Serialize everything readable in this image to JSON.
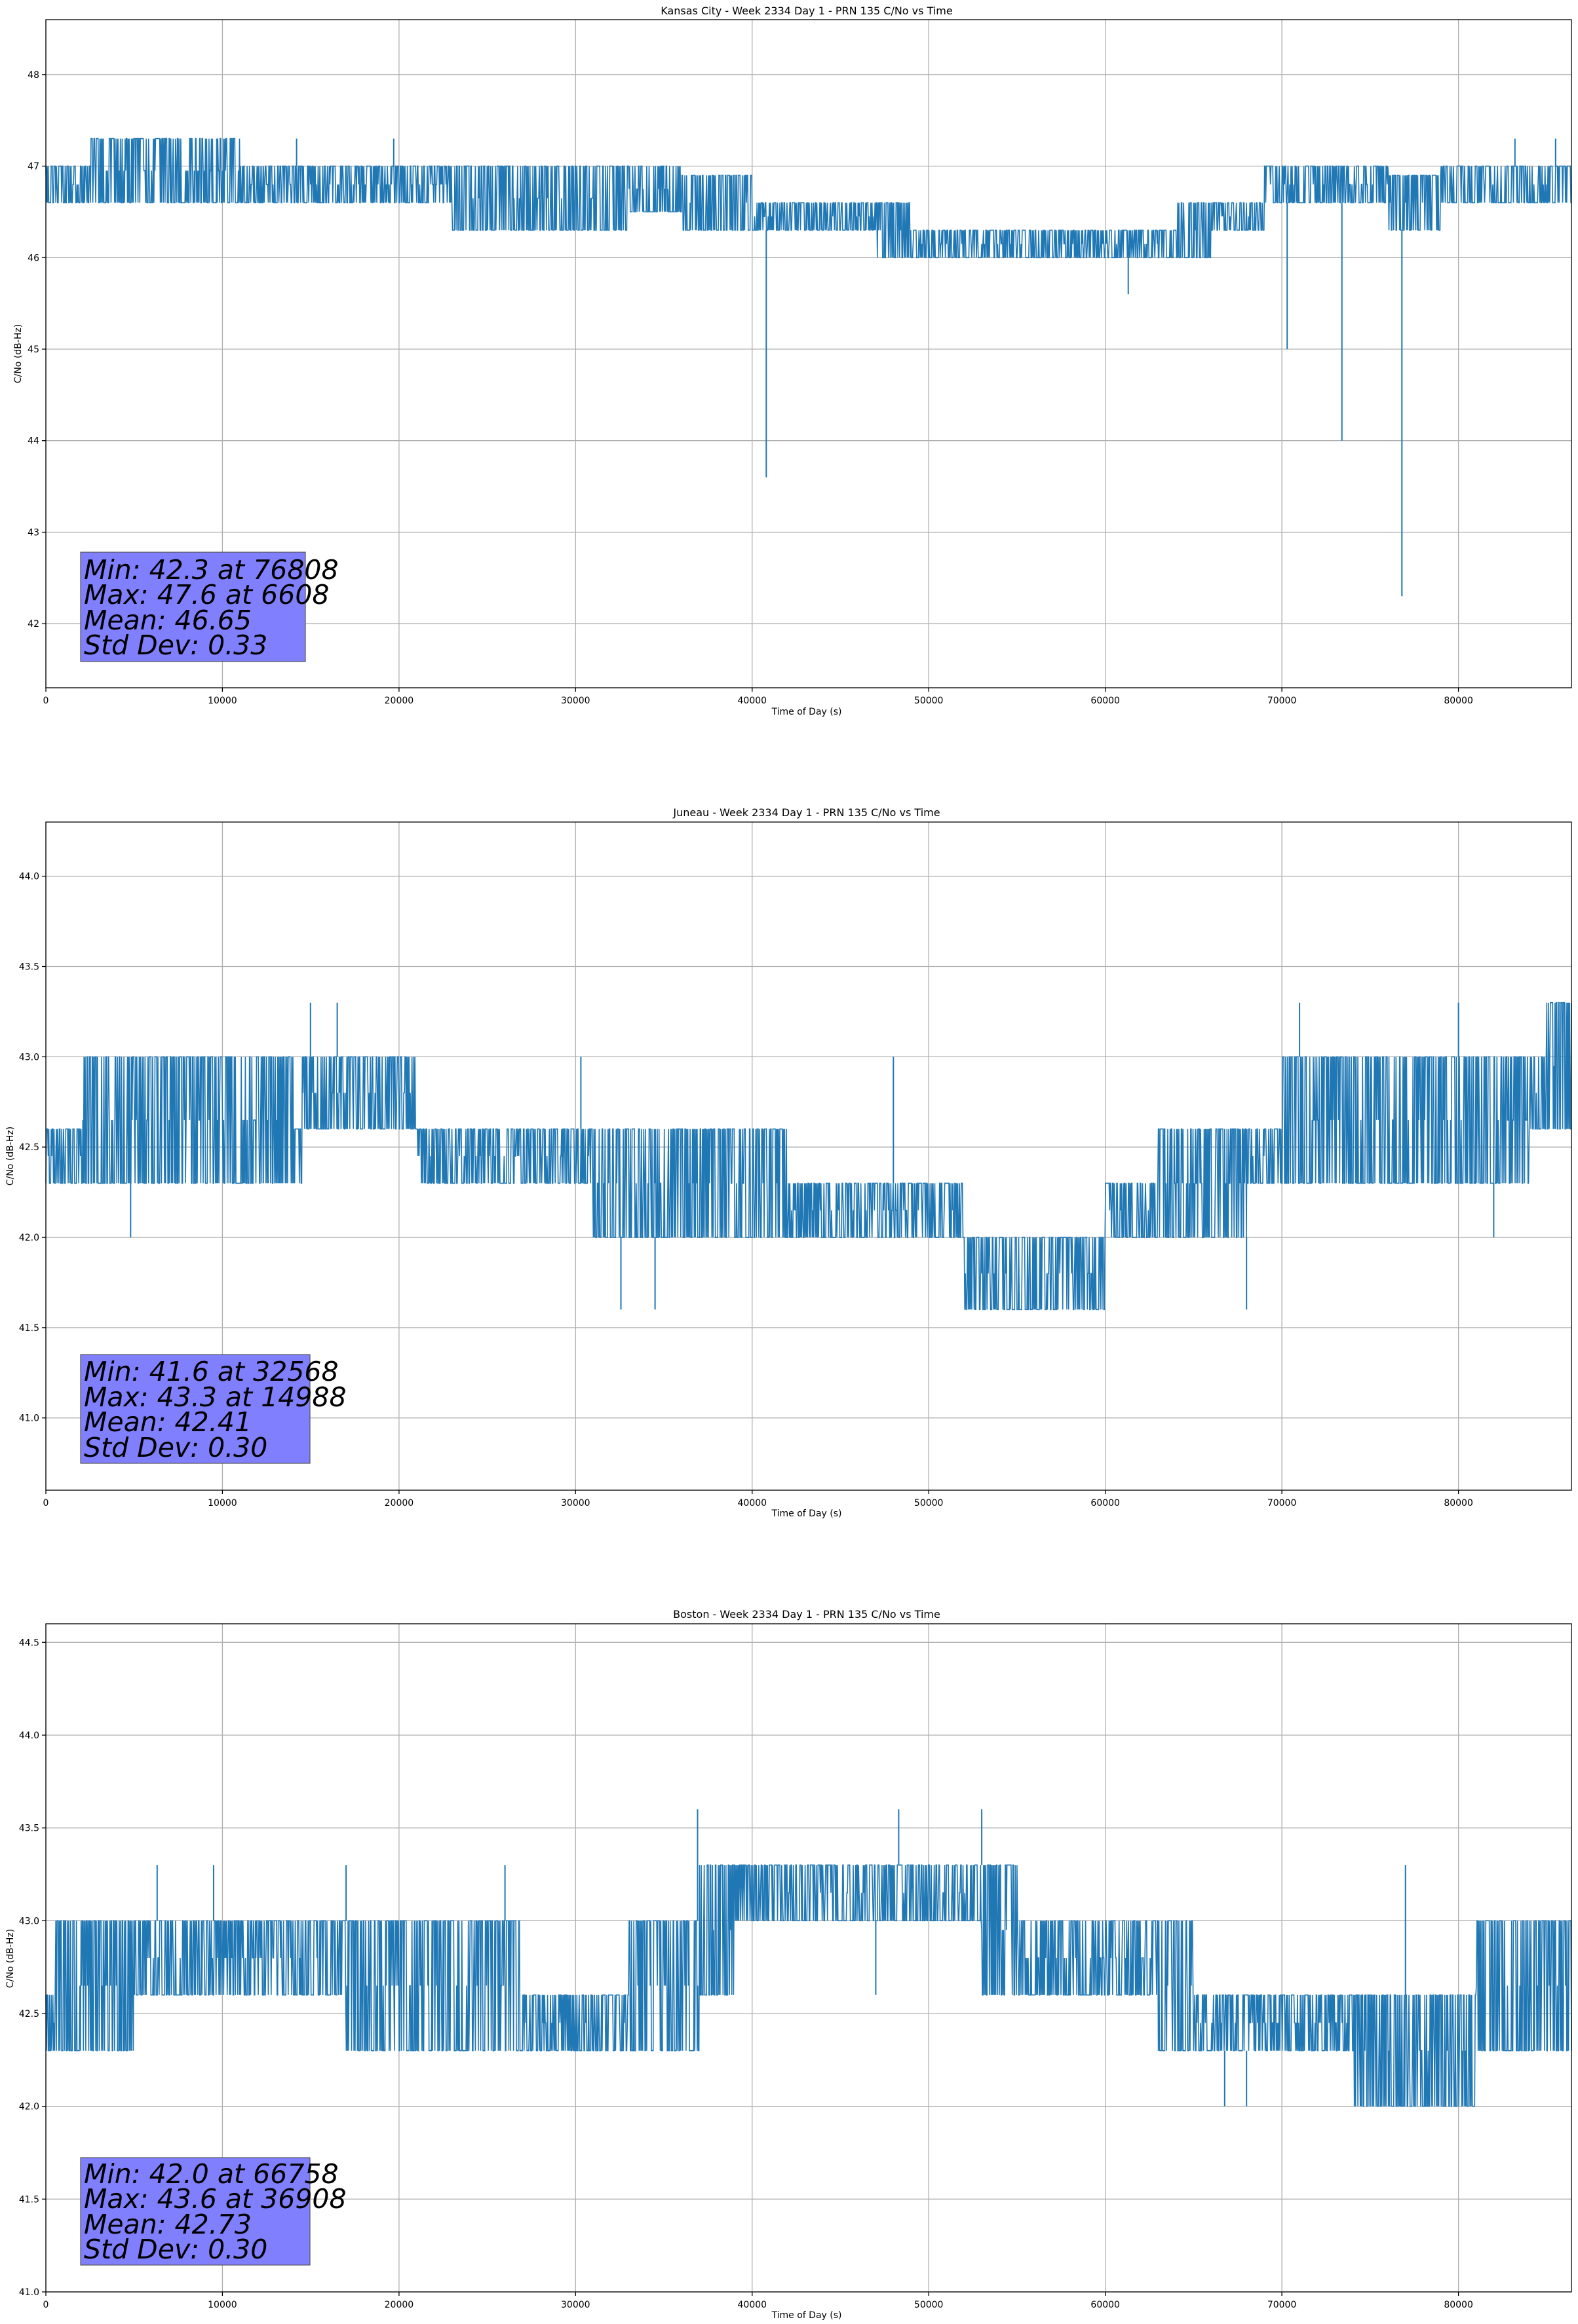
{
  "chart_data": [
    {
      "type": "line",
      "title": "Kansas City - Week 2334 Day 1 - PRN 135 C/No vs Time",
      "xlabel": "Time of Day (s)",
      "ylabel": "C/No (dB-Hz)",
      "xlim": [
        0,
        86400
      ],
      "ylim": [
        41.3,
        48.6
      ],
      "xticks": [
        0,
        10000,
        20000,
        30000,
        40000,
        50000,
        60000,
        70000,
        80000
      ],
      "yticks": [
        42,
        43,
        44,
        45,
        46,
        47,
        48
      ],
      "ytick_decimals": 0,
      "grid": true,
      "line_color": "#1f77b4",
      "stats": {
        "min": "Min: 42.3 at 76808",
        "max": "Max: 47.6 at 6608",
        "mean": "Mean: 46.65",
        "std": "Std Dev: 0.33"
      },
      "series": [
        {
          "x": [
            0,
            2500,
            5000,
            6608,
            9000,
            11000,
            11500,
            15000,
            20000,
            23000,
            26000,
            30000,
            33000,
            36000,
            39000,
            40800,
            41200,
            44000,
            47000,
            50000,
            53000,
            56000,
            58000,
            61300,
            62000,
            65000,
            66000,
            69000,
            70300,
            71000,
            73000,
            73400,
            74000,
            76800,
            77500,
            80000,
            83000,
            86400
          ],
          "y": [
            46.8,
            46.9,
            47.1,
            47.6,
            47.1,
            47.0,
            46.8,
            46.8,
            46.8,
            46.8,
            46.7,
            46.7,
            46.8,
            46.7,
            46.8,
            43.6,
            46.6,
            46.4,
            46.4,
            46.2,
            46.2,
            46.2,
            46.1,
            45.6,
            46.1,
            46.2,
            46.5,
            46.5,
            45.0,
            46.8,
            46.8,
            44.0,
            46.8,
            42.3,
            46.6,
            46.8,
            46.8,
            46.8
          ],
          "band": [
            [
              0,
              46.6,
              47.0
            ],
            [
              2500,
              46.6,
              47.3
            ],
            [
              11000,
              46.6,
              47.0
            ],
            [
              23000,
              46.3,
              47.0
            ],
            [
              33000,
              46.5,
              47.0
            ],
            [
              36000,
              46.3,
              46.9
            ],
            [
              39000,
              46.3,
              46.9
            ],
            [
              40000,
              46.3,
              46.6
            ],
            [
              47000,
              46.0,
              46.6
            ],
            [
              49000,
              46.0,
              46.3
            ],
            [
              56000,
              46.0,
              46.3
            ],
            [
              63000,
              46.0,
              46.3
            ],
            [
              64000,
              46.0,
              46.6
            ],
            [
              66000,
              46.3,
              46.6
            ],
            [
              69000,
              46.6,
              47.0
            ],
            [
              72000,
              46.6,
              47.0
            ],
            [
              76000,
              46.3,
              46.9
            ],
            [
              79000,
              46.6,
              47.0
            ],
            [
              86400,
              46.6,
              47.0
            ]
          ],
          "spikes": [
            [
              3500,
              47.3
            ],
            [
              9700,
              46.6
            ],
            [
              14200,
              47.3
            ],
            [
              19700,
              47.3
            ],
            [
              40800,
              43.6
            ],
            [
              46000,
              46.3
            ],
            [
              61300,
              45.6
            ],
            [
              70300,
              45.0
            ],
            [
              73400,
              44.0
            ],
            [
              76800,
              42.3
            ],
            [
              83200,
              47.3
            ],
            [
              85500,
              47.3
            ]
          ]
        }
      ]
    },
    {
      "type": "line",
      "title": "Juneau - Week 2334 Day 1 - PRN 135 C/No vs Time",
      "xlabel": "Time of Day (s)",
      "ylabel": "C/No (dB-Hz)",
      "xlim": [
        0,
        86400
      ],
      "ylim": [
        40.6,
        44.3
      ],
      "xticks": [
        0,
        10000,
        20000,
        30000,
        40000,
        50000,
        60000,
        70000,
        80000
      ],
      "yticks": [
        41.0,
        41.5,
        42.0,
        42.5,
        43.0,
        43.5,
        44.0
      ],
      "ytick_decimals": 1,
      "grid": true,
      "line_color": "#1f77b4",
      "stats": {
        "min": "Min: 41.6 at 32568",
        "max": "Max: 43.3 at 14988",
        "mean": "Mean: 42.41",
        "std": "Std Dev: 0.30"
      },
      "series": [
        {
          "x": [
            0,
            3000,
            6000,
            9000,
            12000,
            14988,
            17000,
            20000,
            23000,
            26000,
            29000,
            32568,
            35000,
            38000,
            41000,
            44000,
            47000,
            50000,
            52000,
            54000,
            56000,
            58000,
            60000,
            63000,
            66000,
            68000,
            70000,
            72000,
            75000,
            78000,
            81000,
            84000,
            86400
          ],
          "y": [
            42.5,
            42.5,
            42.4,
            42.4,
            42.4,
            43.3,
            42.8,
            42.7,
            42.4,
            42.4,
            42.4,
            41.6,
            42.2,
            42.3,
            42.3,
            42.2,
            42.2,
            42.1,
            41.9,
            41.8,
            41.8,
            41.9,
            42.1,
            42.2,
            42.3,
            42.3,
            42.5,
            42.7,
            42.8,
            42.6,
            42.8,
            43.0,
            43.1
          ],
          "band": [
            [
              0,
              42.3,
              42.6
            ],
            [
              2000,
              42.3,
              43.0
            ],
            [
              14000,
              42.3,
              42.6
            ],
            [
              14500,
              42.6,
              43.0
            ],
            [
              21000,
              42.3,
              42.6
            ],
            [
              31000,
              42.0,
              42.6
            ],
            [
              42000,
              42.0,
              42.3
            ],
            [
              50000,
              42.0,
              42.3
            ],
            [
              52000,
              41.6,
              42.0
            ],
            [
              59000,
              41.6,
              42.0
            ],
            [
              60000,
              42.0,
              42.3
            ],
            [
              63000,
              42.0,
              42.6
            ],
            [
              68000,
              42.3,
              42.6
            ],
            [
              70000,
              42.3,
              43.0
            ],
            [
              84000,
              42.6,
              43.0
            ],
            [
              85000,
              42.6,
              43.3
            ],
            [
              86400,
              42.6,
              43.3
            ]
          ],
          "spikes": [
            [
              4800,
              42.0
            ],
            [
              14988,
              43.3
            ],
            [
              16500,
              43.3
            ],
            [
              30300,
              43.0
            ],
            [
              32568,
              41.6
            ],
            [
              34500,
              41.6
            ],
            [
              48000,
              43.0
            ],
            [
              68000,
              41.6
            ],
            [
              71000,
              43.3
            ],
            [
              80000,
              43.3
            ],
            [
              82000,
              42.0
            ]
          ]
        }
      ]
    },
    {
      "type": "line",
      "title": "Boston - Week 2334 Day 1 - PRN 135 C/No vs Time",
      "xlabel": "Time of Day (s)",
      "ylabel": "C/No (dB-Hz)",
      "xlim": [
        0,
        86400
      ],
      "ylim": [
        41.0,
        44.6
      ],
      "xticks": [
        0,
        10000,
        20000,
        30000,
        40000,
        50000,
        60000,
        70000,
        80000
      ],
      "yticks": [
        41.0,
        41.5,
        42.0,
        42.5,
        43.0,
        43.5,
        44.0,
        44.5
      ],
      "ytick_decimals": 1,
      "grid": true,
      "line_color": "#1f77b4",
      "stats": {
        "min": "Min: 42.0 at 66758",
        "max": "Max: 43.6 at 36908",
        "mean": "Mean: 42.73",
        "std": "Std Dev: 0.30"
      },
      "series": [
        {
          "x": [
            0,
            3000,
            6000,
            9000,
            12000,
            15000,
            18000,
            21000,
            24000,
            27000,
            30000,
            33000,
            36908,
            39000,
            42000,
            45000,
            48000,
            51000,
            54000,
            57000,
            60000,
            63000,
            66758,
            69000,
            72000,
            75000,
            78000,
            81000,
            84000,
            86400
          ],
          "y": [
            42.6,
            42.8,
            42.8,
            42.8,
            42.8,
            42.8,
            42.7,
            42.7,
            42.7,
            42.6,
            42.6,
            42.7,
            43.6,
            43.1,
            43.1,
            43.1,
            43.2,
            43.1,
            42.9,
            42.8,
            42.8,
            42.6,
            42.0,
            42.4,
            42.4,
            42.3,
            42.3,
            42.5,
            42.6,
            42.7
          ],
          "band": [
            [
              0,
              42.3,
              42.6
            ],
            [
              500,
              42.3,
              43.0
            ],
            [
              5000,
              42.6,
              43.0
            ],
            [
              17000,
              42.3,
              43.0
            ],
            [
              27000,
              42.3,
              42.6
            ],
            [
              33000,
              42.3,
              43.0
            ],
            [
              37000,
              42.6,
              43.3
            ],
            [
              39000,
              43.0,
              43.3
            ],
            [
              53000,
              42.6,
              43.3
            ],
            [
              55000,
              42.6,
              43.0
            ],
            [
              61000,
              42.6,
              43.0
            ],
            [
              63000,
              42.3,
              43.0
            ],
            [
              65000,
              42.3,
              42.6
            ],
            [
              72000,
              42.3,
              42.6
            ],
            [
              74000,
              42.0,
              42.6
            ],
            [
              80000,
              42.0,
              42.6
            ],
            [
              81000,
              42.3,
              43.0
            ],
            [
              86400,
              42.3,
              43.0
            ]
          ],
          "spikes": [
            [
              6300,
              43.3
            ],
            [
              9500,
              43.3
            ],
            [
              17000,
              43.3
            ],
            [
              26000,
              43.3
            ],
            [
              36908,
              43.6
            ],
            [
              48300,
              43.6
            ],
            [
              53000,
              43.6
            ],
            [
              47000,
              42.6
            ],
            [
              66758,
              42.0
            ],
            [
              68000,
              42.0
            ],
            [
              77000,
              43.3
            ],
            [
              74500,
              42.0
            ]
          ]
        }
      ]
    }
  ]
}
